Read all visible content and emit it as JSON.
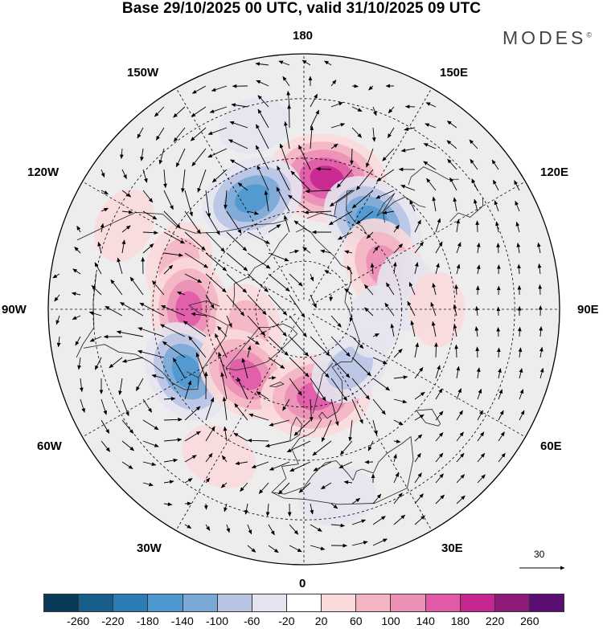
{
  "header": {
    "title": "Base 29/10/2025 00 UTC, valid 31/10/2025 09 UTC",
    "brand": "MODES",
    "brand_mark": "©"
  },
  "map": {
    "projection": "north-polar-stereographic",
    "longitude_labels": {
      "lon_180": "180",
      "lon_150E": "150E",
      "lon_120E": "120E",
      "lon_90E": "90E",
      "lon_60E": "60E",
      "lon_30E": "30E",
      "lon_0": "0",
      "lon_30W": "30W",
      "lon_60W": "60W",
      "lon_90W": "90W",
      "lon_120W": "120W",
      "lon_150W": "150W"
    },
    "anomaly_centers": [
      {
        "lon": 170,
        "lat": 50,
        "value": 210
      },
      {
        "lon": 205,
        "lat": 53,
        "value": -150
      },
      {
        "lon": 142,
        "lat": 56,
        "value": -160
      },
      {
        "lon": 118,
        "lat": 62,
        "value": 140
      },
      {
        "lon": 100,
        "lat": 58,
        "value": -60
      },
      {
        "lon": 250,
        "lat": 50,
        "value": 80
      },
      {
        "lon": 270,
        "lat": 55,
        "value": 150
      },
      {
        "lon": 287,
        "lat": 72,
        "value": 80
      },
      {
        "lon": 298,
        "lat": 50,
        "value": -150
      },
      {
        "lon": 318,
        "lat": 63,
        "value": 150
      },
      {
        "lon": 8,
        "lat": 63,
        "value": 180
      },
      {
        "lon": 38,
        "lat": 67,
        "value": -70
      },
      {
        "lon": 90,
        "lat": 50,
        "value": 40
      },
      {
        "lon": 10,
        "lat": 35,
        "value": -50
      },
      {
        "lon": 330,
        "lat": 40,
        "value": 50
      },
      {
        "lon": 245,
        "lat": 33,
        "value": 40
      },
      {
        "lon": 195,
        "lat": 35,
        "value": -30
      },
      {
        "lon": 80,
        "lat": 68,
        "value": -30
      }
    ],
    "reference_vector": "30"
  },
  "colorbar": {
    "colors": [
      "#0a3a5a",
      "#175e8a",
      "#2b7cb4",
      "#4c98cf",
      "#7aa9d6",
      "#b8c4e4",
      "#e4e4f0",
      "#ffffff",
      "#f9d9da",
      "#f3b4c3",
      "#ec8fb5",
      "#e05aa8",
      "#c72690",
      "#8e1a7a",
      "#5a0e72"
    ],
    "ticks": [
      "-260",
      "-220",
      "-180",
      "-140",
      "-100",
      "-60",
      "-20",
      "20",
      "60",
      "100",
      "140",
      "180",
      "220",
      "260"
    ]
  }
}
